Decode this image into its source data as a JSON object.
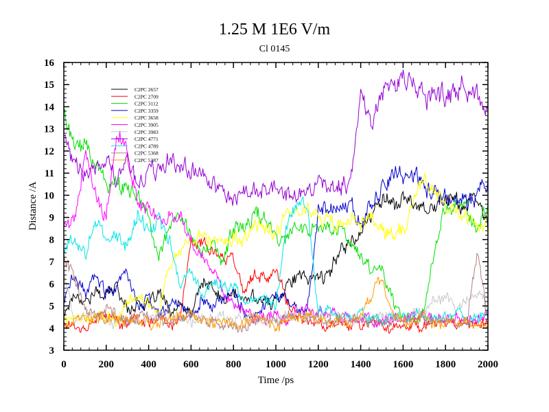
{
  "chart_data": {
    "type": "line",
    "title": "1.25 M 1E6 V/m",
    "subtitle": "Cl 0145",
    "xlabel": "Time /ps",
    "ylabel": "Distance /A",
    "xlim": [
      0,
      2000
    ],
    "ylim": [
      3,
      16
    ],
    "xticks": [
      0,
      200,
      400,
      600,
      800,
      1000,
      1200,
      1400,
      1600,
      1800,
      2000
    ],
    "yticks": [
      3,
      4,
      5,
      6,
      7,
      8,
      9,
      10,
      11,
      12,
      13,
      14,
      15,
      16
    ],
    "legend_position": "top-left",
    "series": [
      {
        "name": "C2PC 2657",
        "color": "#000000",
        "base": [
          4.6,
          5.6,
          5.2,
          5.6,
          5.5,
          5.9,
          4.8,
          5.2,
          5.0,
          5.6,
          4.7,
          5.0,
          4.6,
          6.1,
          5.8,
          5.2,
          5.6,
          5.2,
          5.5,
          5.1,
          5.2,
          6.0,
          6.3,
          6.2,
          6.4,
          6.3,
          7.6,
          7.9,
          8.4,
          9.0,
          10.0,
          9.6,
          9.8,
          9.6,
          9.6,
          9.4,
          10.0,
          9.7,
          9.5,
          9.8,
          8.6
        ]
      },
      {
        "name": "C2PC 2709",
        "color": "#ff0000",
        "base": [
          4.2,
          4.1,
          4.0,
          4.4,
          4.6,
          4.3,
          4.2,
          4.4,
          4.2,
          4.6,
          4.0,
          4.4,
          8.0,
          7.8,
          7.6,
          7.4,
          7.2,
          5.5,
          6.6,
          6.1,
          6.6,
          5.2,
          4.5,
          4.2,
          4.2,
          4.1,
          4.3,
          4.1,
          4.2,
          4.3,
          4.2,
          4.0,
          4.1,
          4.2,
          4.1,
          4.3,
          4.2,
          4.1,
          4.2,
          4.2,
          4.2
        ]
      },
      {
        "name": "C2PC 3112",
        "color": "#00dd00",
        "base": [
          13.8,
          12.1,
          12.3,
          11.5,
          10.6,
          10.5,
          10.2,
          10.1,
          8.6,
          7.5,
          8.8,
          9.0,
          8.0,
          7.5,
          7.6,
          7.1,
          8.4,
          8.5,
          9.2,
          8.8,
          8.1,
          8.2,
          8.6,
          8.5,
          8.3,
          8.6,
          8.6,
          7.5,
          7.3,
          6.7,
          6.8,
          5.2,
          4.6,
          4.4,
          4.9,
          7.8,
          9.4,
          9.5,
          9.4,
          8.4,
          9.6
        ]
      },
      {
        "name": "C2PC 3359",
        "color": "#0000cc",
        "base": [
          5.2,
          6.4,
          5.6,
          6.3,
          5.6,
          5.8,
          6.6,
          4.9,
          5.3,
          4.6,
          5.0,
          5.2,
          4.6,
          5.4,
          4.9,
          5.3,
          5.8,
          4.7,
          4.6,
          5.1,
          5.6,
          5.4,
          4.8,
          5.0,
          9.4,
          9.5,
          9.4,
          9.6,
          8.8,
          9.5,
          10.3,
          11.1,
          10.9,
          11.0,
          10.4,
          10.1,
          9.8,
          9.8,
          9.6,
          10.2,
          10.6
        ]
      },
      {
        "name": "C2PC 3658",
        "color": "#ffff00",
        "base": [
          4.4,
          4.6,
          4.4,
          4.5,
          4.6,
          4.3,
          5.2,
          5.6,
          5.1,
          4.8,
          7.0,
          7.5,
          7.9,
          8.2,
          7.9,
          8.1,
          8.1,
          8.0,
          8.7,
          8.5,
          8.3,
          9.3,
          9.3,
          9.2,
          9.1,
          8.8,
          8.6,
          8.7,
          8.8,
          8.9,
          8.4,
          8.2,
          8.4,
          9.7,
          10.8,
          10.1,
          9.5,
          9.3,
          8.9,
          8.6,
          8.7
        ]
      },
      {
        "name": "C2PC 3905",
        "color": "#ff00ff",
        "base": [
          8.6,
          8.8,
          12.0,
          9.9,
          9.0,
          13.0,
          11.8,
          9.5,
          9.3,
          8.9,
          8.9,
          9.0,
          7.9,
          7.3,
          6.8,
          5.6,
          5.2,
          4.9,
          4.5,
          4.5,
          4.7,
          4.2,
          4.8,
          4.9,
          4.6,
          4.7,
          4.5,
          4.6,
          4.4,
          4.3,
          4.3,
          4.4,
          4.4,
          4.5,
          4.6,
          4.3,
          4.5,
          4.4,
          4.5,
          4.4,
          4.6
        ]
      },
      {
        "name": "C2PC 3983",
        "color": "#c8c8c8",
        "base": [
          6.5,
          4.3,
          4.7,
          4.5,
          4.4,
          4.3,
          4.4,
          4.3,
          4.4,
          4.5,
          4.6,
          4.4,
          4.3,
          4.4,
          4.5,
          4.4,
          4.3,
          4.5,
          4.4,
          4.3,
          4.4,
          4.5,
          4.6,
          4.4,
          4.5,
          4.6,
          4.5,
          4.4,
          4.3,
          4.4,
          4.5,
          4.6,
          4.4,
          4.5,
          4.8,
          5.2,
          5.5,
          4.9,
          5.4,
          5.6,
          5.0
        ]
      },
      {
        "name": "C2PC 4771",
        "color": "#9400d3",
        "base": [
          12.5,
          11.3,
          10.9,
          11.3,
          11.5,
          10.6,
          11.5,
          10.2,
          11.0,
          11.3,
          11.8,
          11.3,
          11.2,
          11.0,
          10.5,
          10.4,
          9.8,
          10.3,
          10.1,
          10.3,
          10.4,
          10.1,
          10.2,
          9.8,
          10.8,
          10.5,
          10.4,
          10.5,
          14.5,
          13.2,
          15.0,
          15.0,
          15.2,
          15.5,
          14.2,
          14.4,
          14.5,
          14.6,
          15.0,
          14.6,
          13.5
        ]
      },
      {
        "name": "C2PC 4789",
        "color": "#00e5e5",
        "base": [
          7.5,
          8.1,
          7.2,
          8.9,
          8.0,
          8.2,
          7.6,
          9.3,
          8.3,
          9.0,
          7.9,
          5.9,
          6.5,
          5.5,
          6.2,
          5.8,
          5.9,
          5.1,
          5.4,
          5.2,
          5.0,
          8.8,
          9.5,
          9.3,
          4.7,
          4.8,
          4.5,
          4.6,
          4.7,
          4.5,
          4.4,
          4.6,
          4.5,
          4.6,
          4.5,
          4.4,
          4.5,
          4.6,
          4.5,
          4.4,
          4.6
        ]
      },
      {
        "name": "C2PC 5368",
        "color": "#b08080",
        "base": [
          7.2,
          6.2,
          4.9,
          4.6,
          4.9,
          4.5,
          4.3,
          4.6,
          4.4,
          4.5,
          4.3,
          4.4,
          4.6,
          4.5,
          4.3,
          4.2,
          4.1,
          4.0,
          4.2,
          4.3,
          4.4,
          4.5,
          4.5,
          4.4,
          4.5,
          4.3,
          4.4,
          4.5,
          4.4,
          4.3,
          4.2,
          4.4,
          4.3,
          4.4,
          4.5,
          4.3,
          4.4,
          4.2,
          4.3,
          7.5,
          4.4
        ]
      },
      {
        "name": "C2PC 5387",
        "color": "#ff9900",
        "base": [
          4.1,
          4.3,
          4.5,
          4.4,
          4.4,
          4.5,
          4.3,
          4.5,
          4.2,
          4.3,
          4.4,
          4.6,
          4.5,
          4.3,
          4.3,
          4.4,
          4.2,
          4.2,
          4.6,
          4.3,
          4.2,
          4.3,
          4.5,
          4.6,
          4.4,
          4.3,
          4.3,
          4.2,
          4.6,
          5.5,
          6.2,
          4.6,
          4.4,
          4.3,
          4.5,
          4.2,
          4.3,
          4.2,
          4.3,
          4.1,
          4.1
        ]
      }
    ]
  }
}
